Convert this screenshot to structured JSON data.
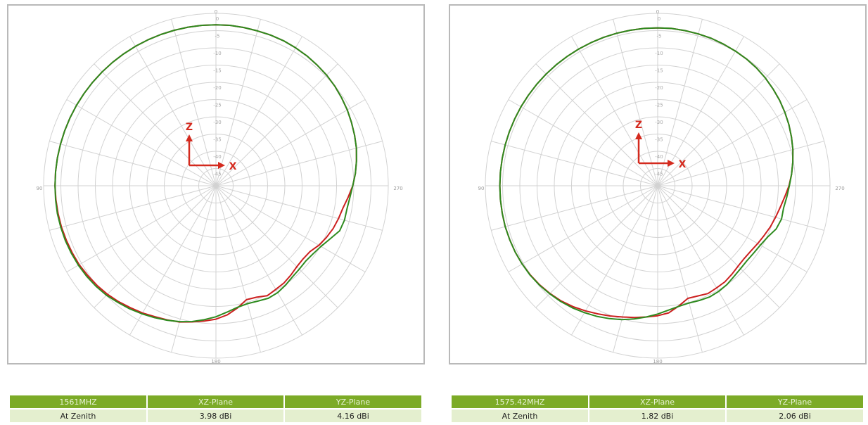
{
  "chart_data": [
    {
      "type": "polar",
      "angle_ticks": [
        "0",
        "90",
        "180",
        "270"
      ],
      "radial_ticks": [
        "0",
        "-5",
        "-10",
        "-15",
        "-20",
        "-25",
        "-30",
        "-35",
        "-40",
        "-45"
      ],
      "axis_labels": {
        "z": "Z",
        "x": "X"
      },
      "series": [
        {
          "color": "#cc1f1f",
          "r": [
            -3.3,
            -3.3,
            -3.4,
            -3.5,
            -3.5,
            -3.6,
            -3.8,
            -4.0,
            -4.3,
            -4.6,
            -5.0,
            -5.5,
            -6.0,
            -6.6,
            -7.2,
            -7.8,
            -8.6,
            -9.4,
            -10.3,
            -11.5,
            -12.6,
            -13.2,
            -13.8,
            -14.6,
            -15.5,
            -16.7,
            -17.0,
            -16.8,
            -16.2,
            -15.6,
            -15.3,
            -14.8,
            -15.6,
            -15.8,
            -14.0,
            -12.4,
            -11.3,
            -10.6,
            -9.9,
            -9.1,
            -8.6,
            -8.1,
            -7.4,
            -6.8,
            -6.1,
            -5.5,
            -5.0,
            -4.6,
            -4.2,
            -4.0,
            -3.8,
            -3.6,
            -3.5,
            -3.4,
            -3.3,
            -3.3,
            -3.3,
            -3.3,
            -3.3,
            -3.3,
            -3.3,
            -3.3,
            -3.3,
            -3.3,
            -3.3,
            -3.3,
            -3.3,
            -3.3,
            -3.3,
            -3.3,
            -3.3,
            -3.3
          ]
        },
        {
          "color": "#2e8b1f",
          "r": [
            -3.3,
            -3.3,
            -3.4,
            -3.5,
            -3.5,
            -3.6,
            -3.8,
            -4.0,
            -4.3,
            -4.6,
            -5.0,
            -5.5,
            -6.0,
            -6.6,
            -7.2,
            -7.8,
            -8.6,
            -9.4,
            -10.3,
            -11.0,
            -11.4,
            -11.4,
            -11.8,
            -13.5,
            -14.8,
            -15.6,
            -16.0,
            -15.8,
            -15.5,
            -14.8,
            -14.2,
            -14.0,
            -14.4,
            -14.6,
            -14.2,
            -13.2,
            -12.0,
            -11.0,
            -10.0,
            -9.2,
            -8.5,
            -7.8,
            -7.1,
            -6.4,
            -5.8,
            -5.1,
            -4.6,
            -4.2,
            -3.9,
            -3.7,
            -3.5,
            -3.4,
            -3.3,
            -3.3,
            -3.3,
            -3.3,
            -3.3,
            -3.3,
            -3.3,
            -3.3,
            -3.3,
            -3.3,
            -3.3,
            -3.3,
            -3.3,
            -3.3,
            -3.3,
            -3.3,
            -3.3,
            -3.3,
            -3.3,
            -3.3
          ]
        }
      ]
    },
    {
      "type": "polar",
      "angle_ticks": [
        "0",
        "90",
        "180",
        "270"
      ],
      "radial_ticks": [
        "0",
        "-5",
        "-10",
        "-15",
        "-20",
        "-25",
        "-30",
        "-35",
        "-40",
        "-45"
      ],
      "axis_labels": {
        "z": "Z",
        "x": "X"
      },
      "series": [
        {
          "color": "#cc1f1f",
          "r": [
            -4.2,
            -4.2,
            -4.3,
            -4.4,
            -4.5,
            -4.7,
            -4.9,
            -5.1,
            -5.4,
            -5.8,
            -6.3,
            -6.8,
            -7.4,
            -8.0,
            -8.7,
            -9.4,
            -10.2,
            -11.0,
            -11.9,
            -13.0,
            -13.9,
            -14.6,
            -15.2,
            -15.9,
            -16.5,
            -17.0,
            -17.2,
            -17.0,
            -16.5,
            -16.0,
            -15.8,
            -15.5,
            -16.0,
            -16.2,
            -14.6,
            -13.0,
            -12.3,
            -11.8,
            -11.2,
            -10.6,
            -9.8,
            -9.0,
            -8.1,
            -7.2,
            -6.4,
            -5.8,
            -5.3,
            -4.9,
            -4.6,
            -4.4,
            -4.3,
            -4.2,
            -4.2,
            -4.2,
            -4.2,
            -4.2,
            -4.2,
            -4.2,
            -4.2,
            -4.2,
            -4.2,
            -4.2,
            -4.2,
            -4.2,
            -4.2,
            -4.2,
            -4.2,
            -4.2,
            -4.2,
            -4.2,
            -4.2,
            -4.2
          ]
        },
        {
          "color": "#2e8b1f",
          "r": [
            -4.2,
            -4.2,
            -4.3,
            -4.4,
            -4.5,
            -4.7,
            -4.9,
            -5.1,
            -5.4,
            -5.8,
            -6.3,
            -6.8,
            -7.4,
            -8.0,
            -8.7,
            -9.4,
            -10.2,
            -11.0,
            -11.8,
            -12.4,
            -12.9,
            -12.8,
            -13.4,
            -14.8,
            -15.6,
            -16.0,
            -16.2,
            -16.0,
            -15.6,
            -15.0,
            -14.6,
            -14.4,
            -14.6,
            -14.8,
            -14.5,
            -13.8,
            -12.8,
            -11.8,
            -10.8,
            -9.8,
            -9.0,
            -8.2,
            -7.5,
            -6.8,
            -6.2,
            -5.7,
            -5.2,
            -4.8,
            -4.6,
            -4.4,
            -4.3,
            -4.2,
            -4.2,
            -4.2,
            -4.2,
            -4.2,
            -4.2,
            -4.2,
            -4.2,
            -4.2,
            -4.2,
            -4.2,
            -4.2,
            -4.2,
            -4.2,
            -4.2,
            -4.2,
            -4.2,
            -4.2,
            -4.2,
            -4.2,
            -4.2
          ]
        }
      ]
    }
  ],
  "tables": [
    {
      "header": [
        "1561MHZ",
        "XZ-Plane",
        "YZ-Plane"
      ],
      "row": [
        "At Zenith",
        "3.98 dBi",
        "4.16 dBi"
      ]
    },
    {
      "header": [
        "1575.42MHZ",
        "XZ-Plane",
        "YZ-Plane"
      ],
      "row": [
        "At Zenith",
        "1.82 dBi",
        "2.06 dBi"
      ]
    }
  ]
}
